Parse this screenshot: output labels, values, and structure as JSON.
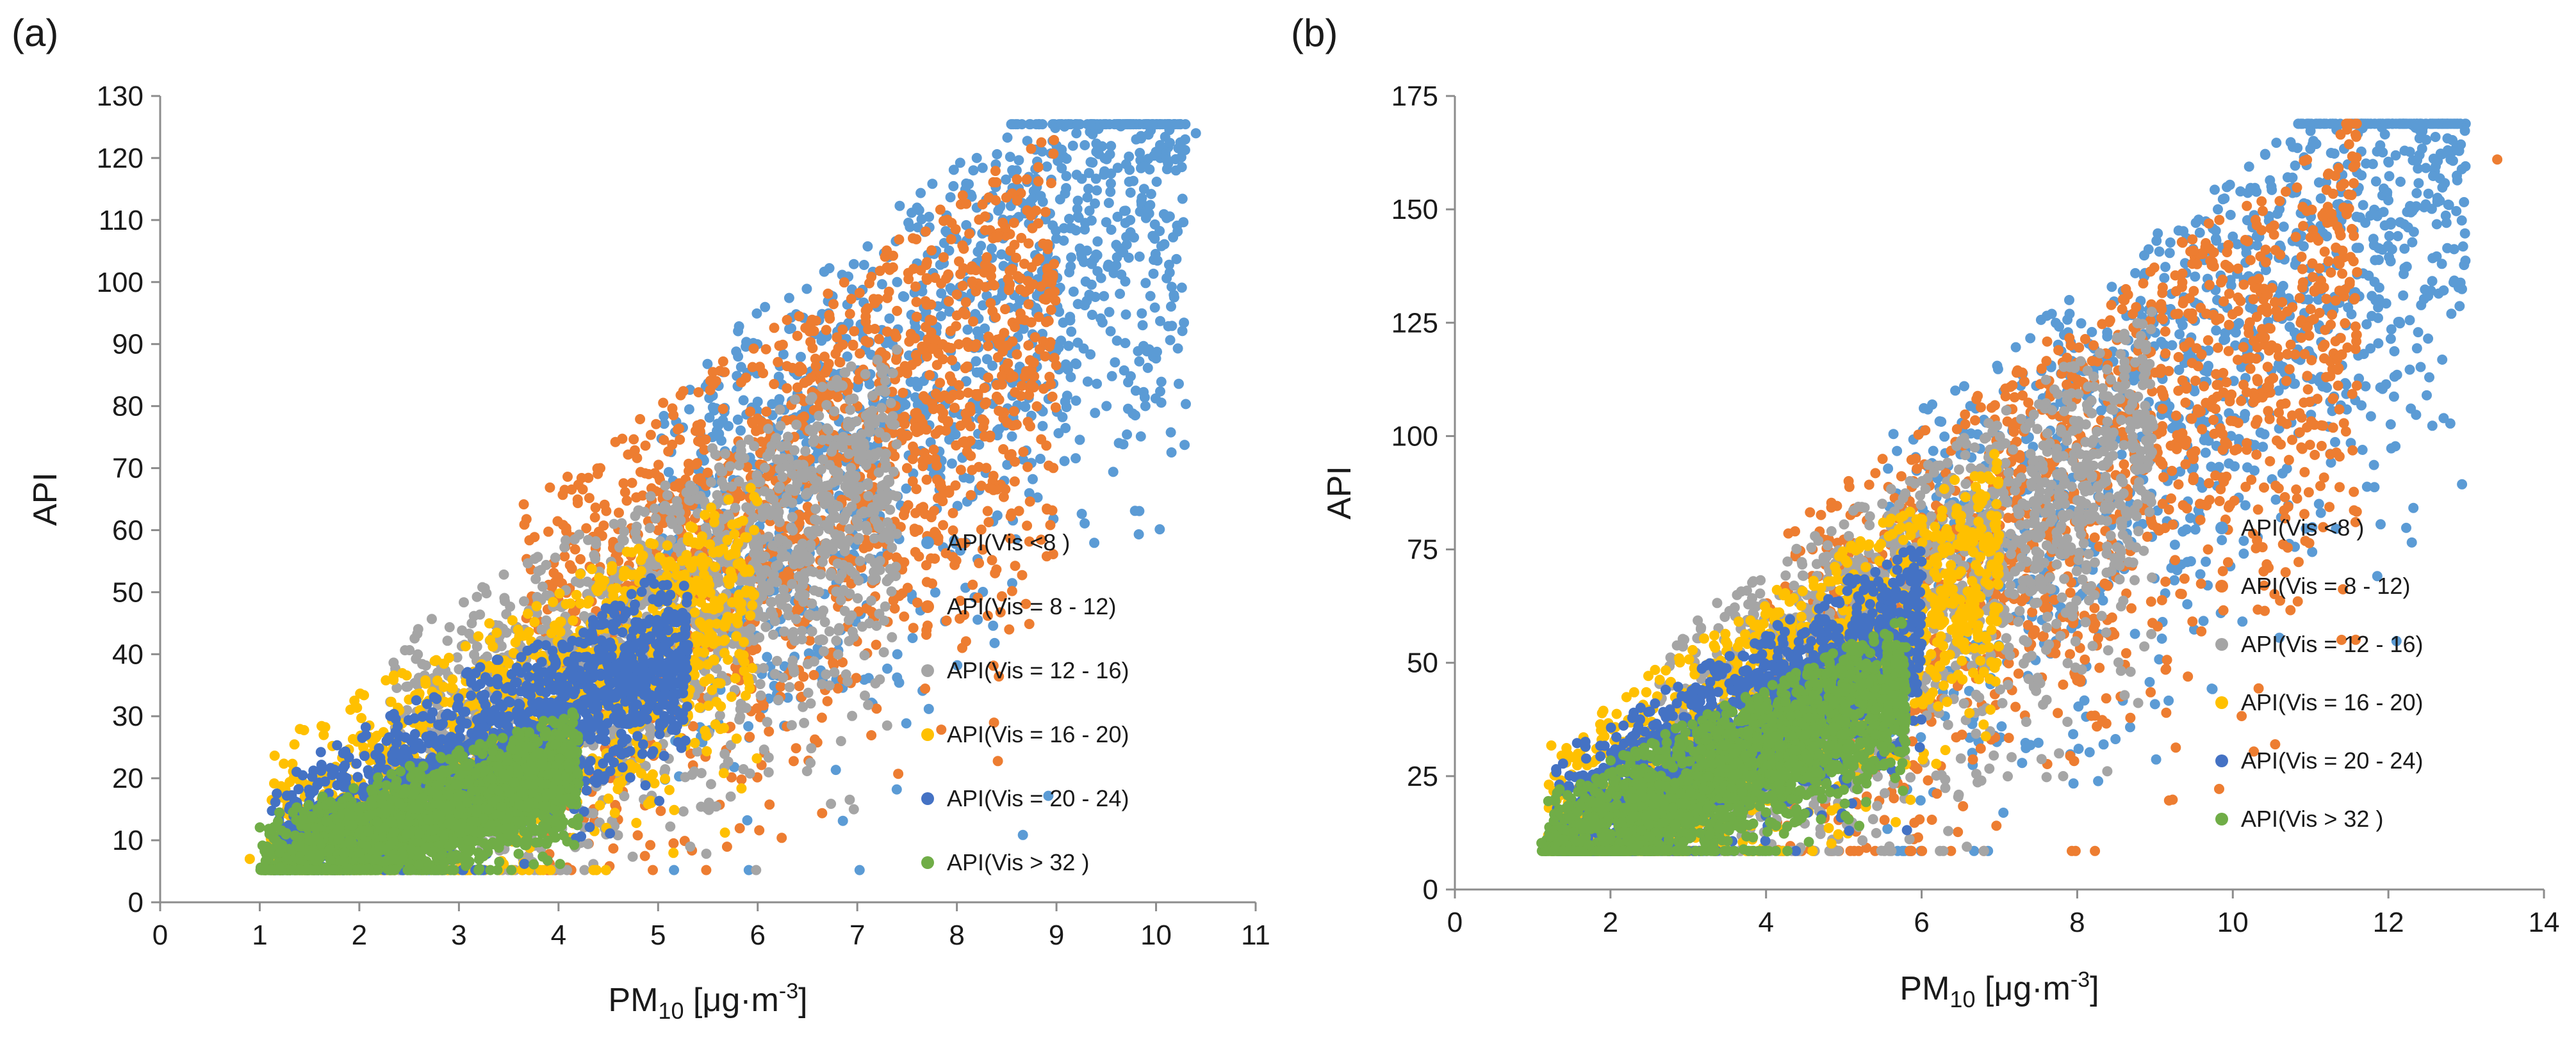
{
  "chart_data": [
    {
      "type": "scatter",
      "panel_label": "(a)",
      "xlabel_main": "PM",
      "xlabel_sub": "10",
      "xlabel_unit_open": " [μg·m",
      "xlabel_unit_sup": "-3",
      "xlabel_unit_close": "]",
      "ylabel": "API",
      "xlim": [
        0,
        11
      ],
      "ylim": [
        0,
        130
      ],
      "xticks": [
        0,
        1,
        2,
        3,
        4,
        5,
        6,
        7,
        8,
        9,
        10,
        11
      ],
      "yticks": [
        0,
        10,
        20,
        30,
        40,
        50,
        60,
        70,
        80,
        90,
        100,
        110,
        120,
        130
      ],
      "legend_position": "center-right",
      "series": [
        {
          "name": "API(Vis <8 )",
          "color": "#5b9bd5",
          "points": [
            [
              8.2,
              112
            ],
            [
              8.6,
              118
            ],
            [
              9.0,
              122
            ],
            [
              9.4,
              121
            ],
            [
              9.8,
              123
            ],
            [
              10.4,
              124
            ],
            [
              10.2,
              118
            ],
            [
              7.6,
              103
            ],
            [
              7.9,
              108
            ],
            [
              7.2,
              96
            ],
            [
              6.8,
              92
            ],
            [
              6.4,
              82
            ],
            [
              6.1,
              74
            ],
            [
              5.8,
              68
            ],
            [
              7.6,
              112
            ],
            [
              8.2,
              120
            ],
            [
              8.8,
              116
            ],
            [
              9.2,
              124
            ],
            [
              9.6,
              106
            ],
            [
              8.8,
              95
            ],
            [
              8.5,
              90
            ],
            [
              7.4,
              100
            ],
            [
              6.9,
              88
            ],
            [
              9.7,
              119
            ],
            [
              10.0,
              121
            ]
          ]
        },
        {
          "name": "API(Vis = 8 - 12)",
          "color": "#ed7d31",
          "points": [
            [
              4.6,
              55
            ],
            [
              5.0,
              60
            ],
            [
              5.3,
              66
            ],
            [
              5.6,
              72
            ],
            [
              6.0,
              78
            ],
            [
              6.4,
              83
            ],
            [
              6.7,
              86
            ],
            [
              7.0,
              80
            ],
            [
              7.3,
              92
            ],
            [
              7.7,
              88
            ],
            [
              8.0,
              98
            ],
            [
              8.3,
              104
            ],
            [
              8.6,
              77
            ],
            [
              8.9,
              100
            ],
            [
              4.2,
              48
            ],
            [
              3.8,
              44
            ],
            [
              5.5,
              62
            ],
            [
              6.2,
              70
            ],
            [
              6.8,
              74
            ],
            [
              7.5,
              70
            ],
            [
              4.9,
              56
            ],
            [
              5.8,
              66
            ],
            [
              3.4,
              38
            ],
            [
              6.5,
              76
            ]
          ]
        },
        {
          "name": "API(Vis = 12 - 16)",
          "color": "#a5a5a5",
          "points": [
            [
              4.6,
              42
            ],
            [
              5.0,
              48
            ],
            [
              5.4,
              52
            ],
            [
              5.8,
              57
            ],
            [
              6.2,
              62
            ],
            [
              6.5,
              66
            ],
            [
              6.8,
              68
            ],
            [
              7.1,
              60
            ],
            [
              5.1,
              38
            ],
            [
              4.4,
              34
            ],
            [
              5.7,
              48
            ],
            [
              6.0,
              54
            ],
            [
              5.9,
              42
            ],
            [
              6.4,
              56
            ],
            [
              4.0,
              36
            ],
            [
              3.6,
              32
            ],
            [
              2.8,
              26
            ],
            [
              2.4,
              22
            ],
            [
              3.1,
              29
            ],
            [
              6.9,
              63
            ],
            [
              5.5,
              55
            ],
            [
              4.8,
              45
            ],
            [
              6.6,
              60
            ]
          ]
        },
        {
          "name": "API(Vis = 16 - 20)",
          "color": "#ffc000",
          "points": [
            [
              3.6,
              38
            ],
            [
              4.0,
              42
            ],
            [
              4.4,
              44
            ],
            [
              4.8,
              50
            ],
            [
              5.2,
              46
            ],
            [
              5.5,
              52
            ],
            [
              5.8,
              45
            ],
            [
              4.9,
              33
            ],
            [
              5.3,
              30
            ],
            [
              4.2,
              28
            ],
            [
              3.8,
              33
            ],
            [
              3.2,
              30
            ],
            [
              2.8,
              26
            ],
            [
              2.3,
              20
            ],
            [
              1.8,
              14
            ],
            [
              1.4,
              11
            ],
            [
              0.9,
              7
            ],
            [
              1.1,
              9
            ],
            [
              5.6,
              48
            ],
            [
              4.6,
              40
            ]
          ]
        },
        {
          "name": "API(Vis = 20 - 24)",
          "color": "#4472c4",
          "points": [
            [
              2.8,
              25
            ],
            [
              3.2,
              28
            ],
            [
              3.6,
              32
            ],
            [
              4.0,
              35
            ],
            [
              4.3,
              38
            ],
            [
              4.6,
              34
            ],
            [
              4.0,
              28
            ],
            [
              3.4,
              22
            ],
            [
              3.0,
              20
            ],
            [
              2.5,
              18
            ],
            [
              2.0,
              15
            ],
            [
              1.6,
              12
            ],
            [
              4.4,
              30
            ],
            [
              3.8,
              36
            ],
            [
              4.8,
              30
            ],
            [
              5.0,
              40
            ],
            [
              4.2,
              26
            ],
            [
              3.5,
              30
            ],
            [
              2.7,
              22
            ],
            [
              1.9,
              16
            ],
            [
              3.3,
              26
            ],
            [
              4.5,
              38
            ],
            [
              3.9,
              24
            ]
          ]
        },
        {
          "name": "API(Vis > 32 )",
          "color": "#70ad47",
          "points": [
            [
              1.2,
              8
            ],
            [
              1.5,
              10
            ],
            [
              1.8,
              12
            ],
            [
              2.1,
              14
            ],
            [
              2.4,
              16
            ],
            [
              2.7,
              18
            ],
            [
              3.0,
              17
            ],
            [
              3.3,
              15
            ],
            [
              3.6,
              13
            ],
            [
              2.2,
              9
            ],
            [
              2.6,
              11
            ],
            [
              3.0,
              12
            ],
            [
              1.6,
              7
            ],
            [
              2.0,
              8
            ],
            [
              2.8,
              14
            ],
            [
              3.4,
              18
            ],
            [
              3.7,
              16
            ],
            [
              1.9,
              10
            ],
            [
              2.5,
              13
            ],
            [
              3.1,
              10
            ],
            [
              2.3,
              15
            ],
            [
              3.5,
              11
            ],
            [
              2.9,
              9
            ],
            [
              1.4,
              9
            ]
          ]
        }
      ]
    },
    {
      "type": "scatter",
      "panel_label": "(b)",
      "xlabel_main": "PM",
      "xlabel_sub": "10",
      "xlabel_unit_open": " [μg·m",
      "xlabel_unit_sup": "-3",
      "xlabel_unit_close": "]",
      "ylabel": "API",
      "xlim": [
        0,
        14
      ],
      "ylim": [
        0,
        175
      ],
      "xticks": [
        0,
        2,
        4,
        6,
        8,
        10,
        12,
        14
      ],
      "yticks": [
        0,
        25,
        50,
        75,
        100,
        125,
        150,
        175
      ],
      "legend_position": "center-right",
      "series": [
        {
          "name": "API(Vis <8 )",
          "color": "#5b9bd5",
          "points": [
            [
              7.0,
              100
            ],
            [
              7.6,
              112
            ],
            [
              8.2,
              120
            ],
            [
              8.8,
              128
            ],
            [
              9.4,
              136
            ],
            [
              10.0,
              144
            ],
            [
              10.6,
              150
            ],
            [
              11.2,
              156
            ],
            [
              11.8,
              160
            ],
            [
              12.4,
              162
            ],
            [
              12.8,
              161
            ],
            [
              11.0,
              146
            ],
            [
              9.8,
              130
            ],
            [
              8.6,
              118
            ],
            [
              7.4,
              104
            ],
            [
              10.4,
              138
            ],
            [
              12.0,
              152
            ],
            [
              9.2,
              128
            ],
            [
              6.5,
              96
            ],
            [
              11.6,
              154
            ]
          ]
        },
        {
          "name": "API(Vis = 8 - 12)",
          "color": "#ed7d31",
          "points": [
            [
              6.0,
              82
            ],
            [
              6.6,
              90
            ],
            [
              7.2,
              96
            ],
            [
              7.8,
              102
            ],
            [
              8.4,
              108
            ],
            [
              9.0,
              114
            ],
            [
              9.6,
              118
            ],
            [
              10.2,
              124
            ],
            [
              10.8,
              118
            ],
            [
              11.0,
              128
            ],
            [
              11.4,
              118
            ],
            [
              13.4,
              161
            ],
            [
              7.0,
              92
            ],
            [
              8.0,
              98
            ],
            [
              5.6,
              76
            ],
            [
              9.3,
              110
            ],
            [
              8.7,
              104
            ],
            [
              4.8,
              68
            ],
            [
              10.5,
              120
            ]
          ]
        },
        {
          "name": "API(Vis = 12 - 16)",
          "color": "#a5a5a5",
          "points": [
            [
              4.2,
              52
            ],
            [
              4.8,
              60
            ],
            [
              5.4,
              68
            ],
            [
              6.0,
              76
            ],
            [
              6.6,
              84
            ],
            [
              7.2,
              88
            ],
            [
              7.8,
              92
            ],
            [
              8.2,
              96
            ],
            [
              5.6,
              62
            ],
            [
              6.2,
              70
            ],
            [
              7.0,
              74
            ],
            [
              3.6,
              46
            ],
            [
              3.0,
              38
            ],
            [
              6.8,
              80
            ],
            [
              7.6,
              86
            ],
            [
              5.0,
              56
            ],
            [
              2.6,
              32
            ],
            [
              8.6,
              98
            ]
          ]
        },
        {
          "name": "API(Vis = 16 - 20)",
          "color": "#ffc000",
          "points": [
            [
              3.4,
              40
            ],
            [
              4.0,
              46
            ],
            [
              4.6,
              52
            ],
            [
              5.2,
              58
            ],
            [
              5.6,
              62
            ],
            [
              6.0,
              56
            ],
            [
              6.6,
              62
            ],
            [
              6.8,
              48
            ],
            [
              5.8,
              46
            ],
            [
              4.8,
              42
            ],
            [
              2.4,
              28
            ],
            [
              1.8,
              20
            ],
            [
              1.2,
              12
            ],
            [
              1.5,
              16
            ],
            [
              3.0,
              34
            ],
            [
              4.2,
              50
            ],
            [
              5.4,
              52
            ],
            [
              6.2,
              60
            ]
          ]
        },
        {
          "name": "API(Vis = 20 - 24)",
          "color": "#4472c4",
          "points": [
            [
              3.0,
              30
            ],
            [
              3.5,
              36
            ],
            [
              4.0,
              40
            ],
            [
              4.5,
              44
            ],
            [
              5.0,
              46
            ],
            [
              5.4,
              40
            ],
            [
              5.0,
              34
            ],
            [
              4.4,
              30
            ],
            [
              3.8,
              26
            ],
            [
              3.2,
              22
            ],
            [
              2.6,
              20
            ],
            [
              2.0,
              16
            ],
            [
              4.8,
              38
            ],
            [
              5.6,
              36
            ],
            [
              4.2,
              36
            ],
            [
              3.6,
              32
            ],
            [
              2.8,
              26
            ],
            [
              4.6,
              34
            ]
          ]
        },
        {
          "name": "API(Vis > 32 )",
          "color": "#70ad47",
          "points": [
            [
              1.4,
              11
            ],
            [
              1.8,
              14
            ],
            [
              2.2,
              18
            ],
            [
              2.6,
              20
            ],
            [
              3.0,
              24
            ],
            [
              3.4,
              26
            ],
            [
              3.8,
              28
            ],
            [
              4.2,
              25
            ],
            [
              4.6,
              22
            ],
            [
              5.0,
              22
            ],
            [
              5.6,
              28
            ],
            [
              2.4,
              13
            ],
            [
              3.0,
              16
            ],
            [
              3.6,
              20
            ],
            [
              4.0,
              17
            ],
            [
              2.0,
              12
            ],
            [
              3.2,
              22
            ],
            [
              4.4,
              27
            ],
            [
              2.8,
              18
            ],
            [
              3.9,
              23
            ]
          ]
        }
      ]
    }
  ]
}
